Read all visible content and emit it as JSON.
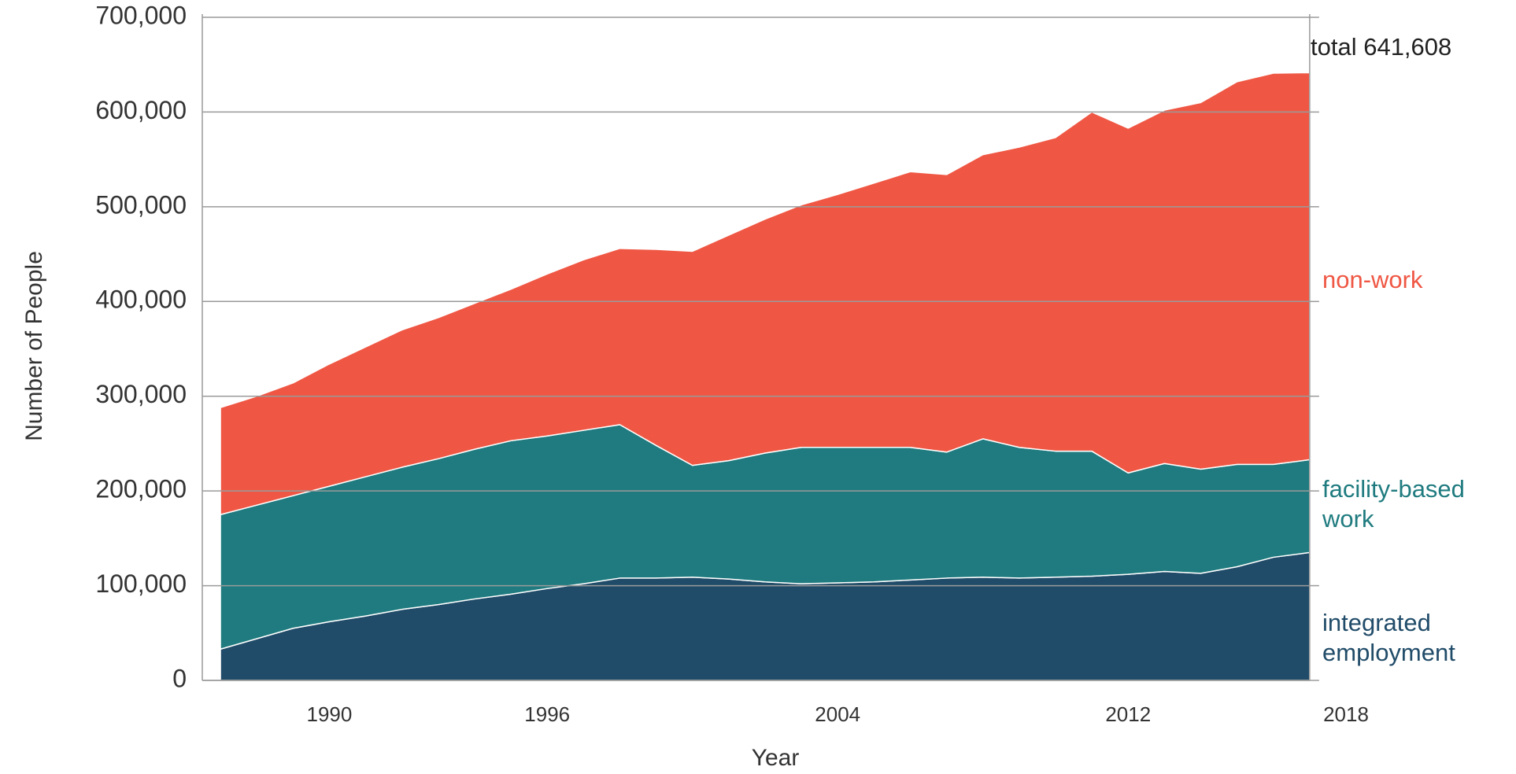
{
  "chart_data": {
    "type": "stacked-area",
    "x_label": "Year",
    "y_label": "Number of People",
    "annotation": "total 641,608",
    "x": [
      1987,
      1988,
      1989,
      1990,
      1991,
      1992,
      1993,
      1994,
      1995,
      1996,
      1997,
      1998,
      1999,
      2000,
      2001,
      2002,
      2003,
      2004,
      2005,
      2006,
      2007,
      2008,
      2009,
      2010,
      2011,
      2012,
      2013,
      2014,
      2015,
      2016,
      2017
    ],
    "series": [
      {
        "name": "integrated employment",
        "color": "#214c69",
        "values": [
          33000,
          44000,
          55000,
          62000,
          68000,
          75000,
          80000,
          86000,
          91000,
          97000,
          102000,
          108000,
          108000,
          109000,
          107000,
          104000,
          102000,
          103000,
          104000,
          106000,
          108000,
          109000,
          108000,
          109000,
          110000,
          112000,
          115000,
          113000,
          120000,
          130000,
          135000
        ]
      },
      {
        "name": "facility-based work",
        "color": "#1f7b7f",
        "values": [
          142000,
          141000,
          140000,
          143000,
          147000,
          150000,
          154000,
          158000,
          162000,
          161000,
          162000,
          162000,
          140000,
          118000,
          125000,
          136000,
          144000,
          143000,
          142000,
          140000,
          133000,
          146000,
          138000,
          133000,
          132000,
          107000,
          114000,
          110000,
          108000,
          98000,
          98000
        ]
      },
      {
        "name": "non-work",
        "color": "#ef5744",
        "values": [
          113000,
          115000,
          119000,
          129000,
          137000,
          145000,
          149000,
          154000,
          160000,
          171000,
          180000,
          186000,
          207000,
          226000,
          238000,
          247000,
          256000,
          267000,
          279000,
          291000,
          293000,
          300000,
          317000,
          331000,
          358000,
          364000,
          373000,
          387000,
          404000,
          413000,
          408608
        ]
      }
    ],
    "xlim": [
      1986.5,
      2018
    ],
    "xticks": [
      1990,
      1996,
      2004,
      2012,
      2018
    ],
    "ylim": [
      0,
      700000
    ],
    "yticks": [
      0,
      {
        "value": 100000,
        "label": "100,000"
      },
      {
        "value": 200000,
        "label": "200,000"
      },
      {
        "value": 300000,
        "label": "300,000"
      },
      {
        "value": 400000,
        "label": "400,000"
      },
      {
        "value": 500000,
        "label": "500,000"
      },
      {
        "value": 600000,
        "label": "600,000"
      },
      {
        "value": 700000,
        "label": "700,000"
      }
    ],
    "grid": true
  }
}
